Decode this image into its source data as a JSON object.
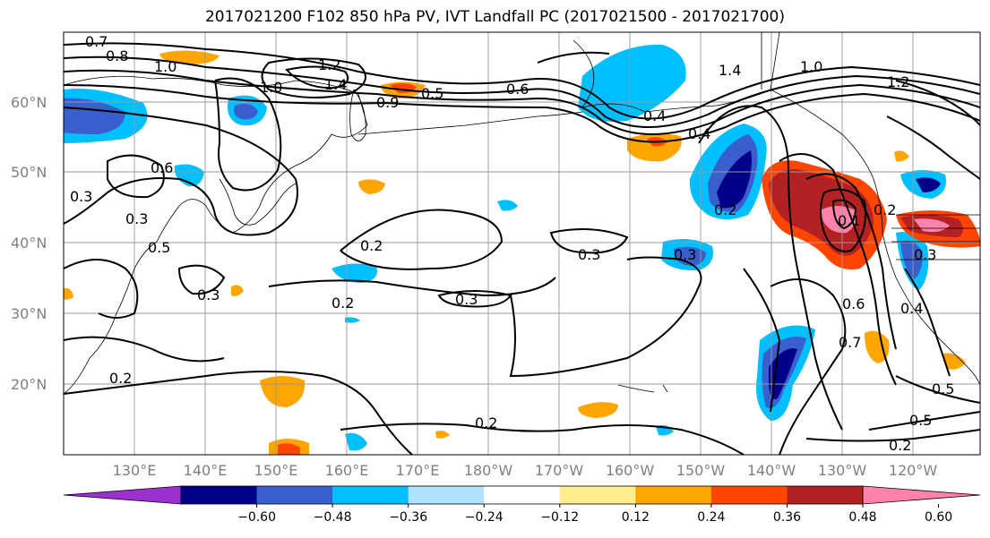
{
  "title": "2017021200 F102 850 hPa PV, IVT Landfall PC (2017021500 - 2017021700)",
  "lat_labels": [
    "60°N",
    "50°N",
    "40°N",
    "30°N",
    "20°N"
  ],
  "lon_labels": [
    "130°E",
    "140°E",
    "150°E",
    "160°E",
    "170°E",
    "180°W",
    "170°W",
    "160°W",
    "150°W",
    "140°W",
    "130°W",
    "120°W"
  ],
  "colorbar": {
    "colors": [
      "#9b30d0",
      "#00008b",
      "#3a5fcd",
      "#00bfff",
      "#b0e2ff",
      "#ffffff",
      "#ffec8b",
      "#ffa500",
      "#ff4500",
      "#b22222",
      "#ff82ab"
    ],
    "tick_labels": [
      "−0.60",
      "−0.48",
      "−0.36",
      "−0.24",
      "−0.12",
      "0.12",
      "0.24",
      "0.36",
      "0.48",
      "0.60"
    ]
  },
  "contour_labels": [
    "0.7",
    "0.8",
    "1.0",
    "1.2",
    "1.4",
    "1.0",
    "0.6",
    "0.5",
    "0.9",
    "1.4",
    "1.0",
    "1.2",
    "0.4",
    "0.6",
    "0.3",
    "0.3",
    "0.5",
    "0.2",
    "0.3",
    "0.3",
    "0.3",
    "0.2",
    "0.3",
    "0.2",
    "0.2",
    "0.2",
    "0.4",
    "0.6",
    "0.7",
    "0.5",
    "0.5",
    "0.2",
    "0.4",
    "0.3",
    "0.1",
    "0.2"
  ]
}
